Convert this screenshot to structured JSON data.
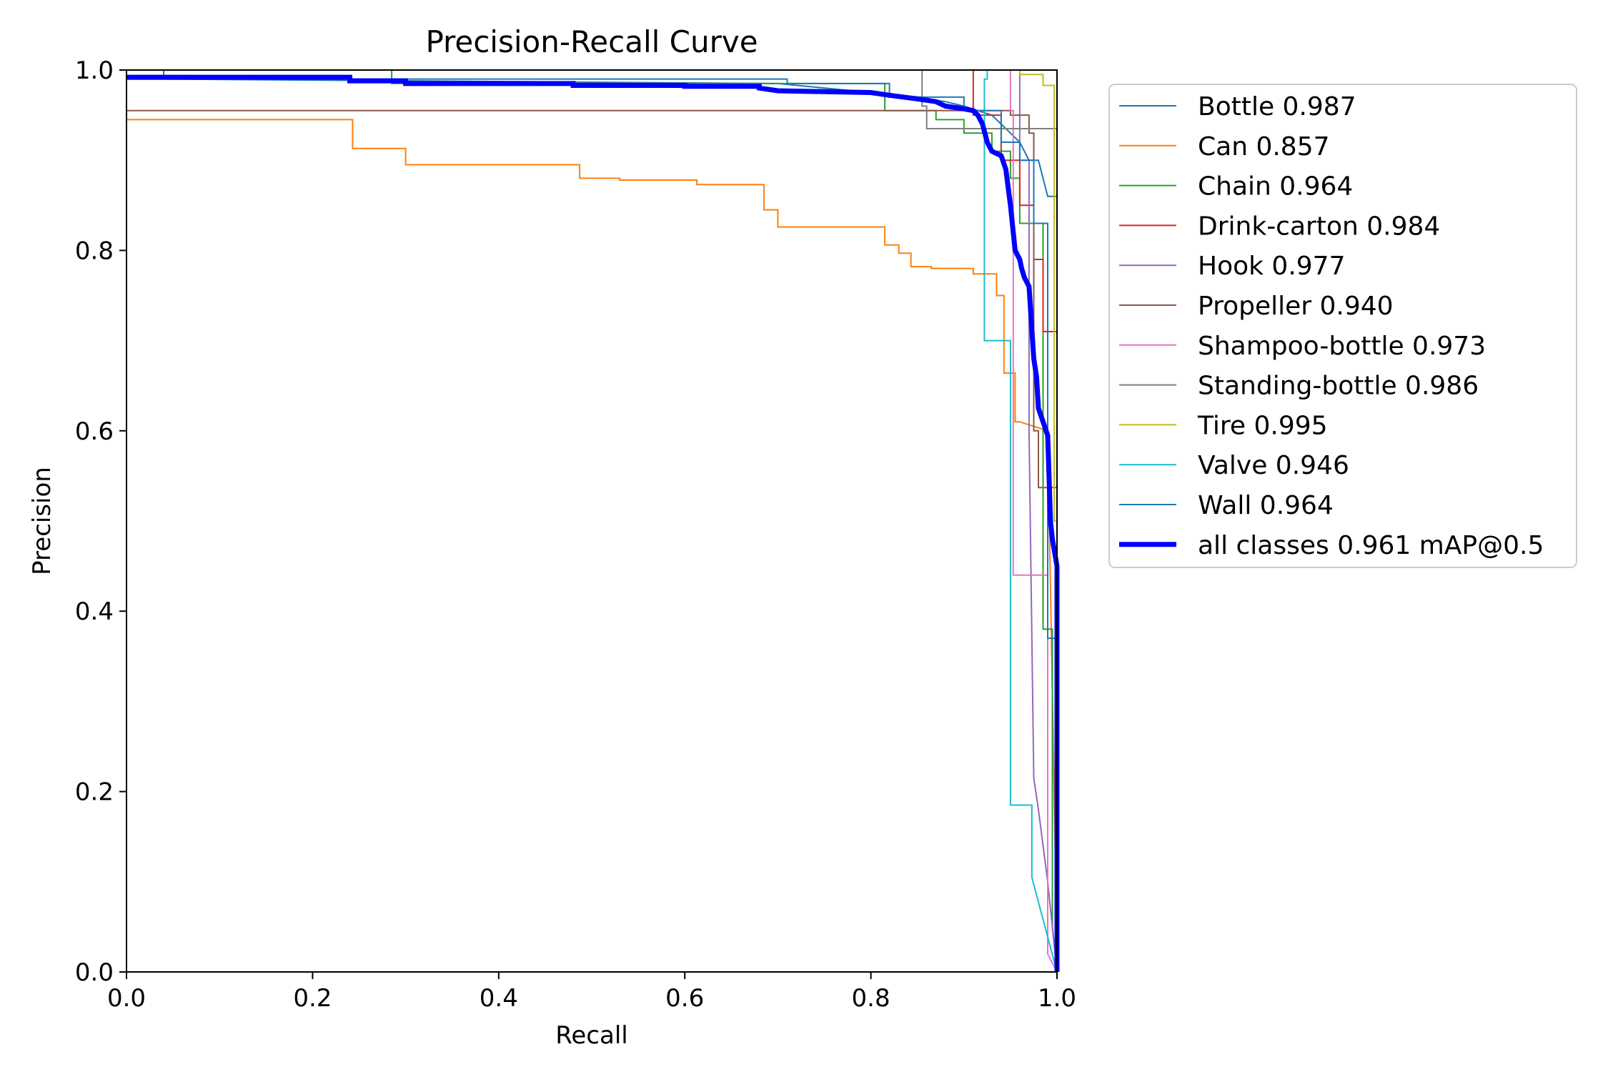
{
  "chart_data": {
    "type": "line",
    "title": "Precision-Recall Curve",
    "xlabel": "Recall",
    "ylabel": "Precision",
    "xlim": [
      0,
      1
    ],
    "ylim": [
      0,
      1
    ],
    "xticks": [
      "0.0",
      "0.2",
      "0.4",
      "0.6",
      "0.8",
      "1.0"
    ],
    "yticks": [
      "0.0",
      "0.2",
      "0.4",
      "0.6",
      "0.8",
      "1.0"
    ],
    "grid": false,
    "legend_position": "outside-right",
    "series": [
      {
        "name": "Bottle 0.987",
        "color": "#1f77b4",
        "width": 2,
        "x": [
          0,
          0.03,
          0.04,
          0.04,
          0.7,
          0.8,
          0.85,
          0.88,
          0.9,
          0.93,
          0.95,
          0.96,
          0.97,
          0.98,
          0.99,
          1.0,
          1.0
        ],
        "y": [
          1.0,
          1.0,
          1.0,
          0.99,
          0.985,
          0.975,
          0.97,
          0.965,
          0.96,
          0.95,
          0.93,
          0.92,
          0.9,
          0.9,
          0.86,
          0.86,
          0.0
        ]
      },
      {
        "name": "Can 0.857",
        "color": "#ff7f0e",
        "width": 2,
        "x": [
          0,
          0.243,
          0.243,
          0.3,
          0.3,
          0.487,
          0.487,
          0.53,
          0.53,
          0.613,
          0.613,
          0.685,
          0.685,
          0.7,
          0.7,
          0.815,
          0.815,
          0.83,
          0.83,
          0.843,
          0.843,
          0.865,
          0.865,
          0.91,
          0.91,
          0.935,
          0.935,
          0.943,
          0.943,
          0.955,
          0.955,
          0.96,
          0.96,
          0.99,
          1.0
        ],
        "y": [
          0.945,
          0.945,
          0.913,
          0.913,
          0.895,
          0.895,
          0.88,
          0.88,
          0.878,
          0.878,
          0.873,
          0.873,
          0.845,
          0.845,
          0.826,
          0.826,
          0.806,
          0.806,
          0.797,
          0.797,
          0.782,
          0.782,
          0.78,
          0.78,
          0.774,
          0.774,
          0.75,
          0.75,
          0.664,
          0.664,
          0.61,
          0.61,
          0.61,
          0.6,
          0.02
        ]
      },
      {
        "name": "Chain 0.964",
        "color": "#2ca02c",
        "width": 2,
        "x": [
          0,
          0.285,
          0.285,
          0.815,
          0.815,
          0.87,
          0.87,
          0.9,
          0.9,
          0.93,
          0.93,
          0.95,
          0.95,
          0.96,
          0.96,
          0.985,
          0.985,
          0.995,
          0.995,
          1.0
        ],
        "y": [
          1.0,
          1.0,
          0.985,
          0.985,
          0.955,
          0.955,
          0.945,
          0.945,
          0.93,
          0.93,
          0.91,
          0.91,
          0.88,
          0.88,
          0.83,
          0.83,
          0.38,
          0.38,
          0.05,
          0.0
        ]
      },
      {
        "name": "Drink-carton 0.984",
        "color": "#d62728",
        "width": 2,
        "x": [
          0.91,
          0.91,
          0.94,
          0.94,
          0.96,
          0.96,
          0.975,
          0.975,
          0.985,
          0.985,
          1.0,
          1.0
        ],
        "y": [
          1.0,
          0.95,
          0.95,
          0.9,
          0.9,
          0.85,
          0.85,
          0.79,
          0.79,
          0.71,
          0.71,
          0.0
        ]
      },
      {
        "name": "Hook 0.977",
        "color": "#9467bd",
        "width": 2,
        "x": [
          0.96,
          0.96,
          0.97,
          0.97,
          0.975,
          0.98,
          0.99,
          1.0
        ],
        "y": [
          1.0,
          0.9,
          0.9,
          0.6,
          0.215,
          0.18,
          0.1,
          0.0
        ]
      },
      {
        "name": "Propeller 0.940",
        "color": "#8c564b",
        "width": 2,
        "x": [
          0,
          0.95,
          0.95,
          0.97,
          0.97,
          0.975,
          0.975,
          0.98,
          0.98,
          1.0,
          1.0
        ],
        "y": [
          0.955,
          0.955,
          0.95,
          0.95,
          0.93,
          0.93,
          0.6,
          0.6,
          0.537,
          0.537,
          0.0
        ]
      },
      {
        "name": "Shampoo-bottle 0.973",
        "color": "#e377c2",
        "width": 2,
        "x": [
          0.95,
          0.95,
          0.953,
          0.953,
          0.99,
          0.99,
          1.0
        ],
        "y": [
          1.0,
          0.955,
          0.955,
          0.44,
          0.44,
          0.02,
          0.0
        ]
      },
      {
        "name": "Standing-bottle 0.986",
        "color": "#7f7f7f",
        "width": 2,
        "x": [
          0.855,
          0.855,
          0.86,
          0.86,
          0.975,
          0.975,
          1.0,
          1.0
        ],
        "y": [
          1.0,
          0.96,
          0.96,
          0.935,
          0.935,
          0.935,
          0.935,
          0.0
        ]
      },
      {
        "name": "Tire 0.995",
        "color": "#bcbd22",
        "width": 2,
        "x": [
          0.96,
          0.96,
          0.985,
          0.985,
          0.997,
          0.997,
          1.0,
          1.0
        ],
        "y": [
          1.0,
          0.995,
          0.995,
          0.983,
          0.983,
          0.5,
          0.5,
          0.0
        ]
      },
      {
        "name": "Valve 0.946",
        "color": "#17becf",
        "width": 2,
        "x": [
          0,
          0.925,
          0.925,
          0.922,
          0.922,
          0.925,
          0.925,
          0.95,
          0.95,
          0.973,
          0.973,
          1.0,
          1.0
        ],
        "y": [
          1.0,
          1.0,
          0.99,
          0.99,
          0.7,
          0.7,
          0.7,
          0.7,
          0.185,
          0.185,
          0.105,
          0.0,
          0.0
        ]
      },
      {
        "name": "Wall 0.964",
        "color": "#1f77b4",
        "width": 2,
        "x": [
          0,
          0.71,
          0.71,
          0.82,
          0.82,
          0.9,
          0.9,
          0.94,
          0.94,
          0.96,
          0.96,
          0.975,
          0.975,
          0.99,
          0.99,
          1.0,
          1.0
        ],
        "y": [
          0.99,
          0.99,
          0.985,
          0.985,
          0.97,
          0.97,
          0.955,
          0.955,
          0.92,
          0.92,
          0.9,
          0.9,
          0.83,
          0.83,
          0.37,
          0.37,
          0.0
        ]
      },
      {
        "name": "all classes 0.961 mAP@0.5",
        "color": "#0000ff",
        "width": 7,
        "x": [
          0,
          0.24,
          0.24,
          0.3,
          0.3,
          0.48,
          0.48,
          0.6,
          0.6,
          0.68,
          0.68,
          0.7,
          0.8,
          0.82,
          0.85,
          0.87,
          0.88,
          0.9,
          0.91,
          0.915,
          0.92,
          0.925,
          0.93,
          0.94,
          0.945,
          0.95,
          0.953,
          0.955,
          0.96,
          0.962,
          0.965,
          0.97,
          0.975,
          0.978,
          0.98,
          0.985,
          0.99,
          0.993,
          0.995,
          1.0,
          1.0
        ],
        "y": [
          0.992,
          0.992,
          0.988,
          0.988,
          0.985,
          0.985,
          0.983,
          0.983,
          0.982,
          0.982,
          0.98,
          0.977,
          0.975,
          0.972,
          0.968,
          0.965,
          0.96,
          0.957,
          0.955,
          0.95,
          0.94,
          0.92,
          0.91,
          0.905,
          0.89,
          0.85,
          0.82,
          0.8,
          0.79,
          0.78,
          0.77,
          0.76,
          0.68,
          0.66,
          0.625,
          0.61,
          0.595,
          0.5,
          0.48,
          0.45,
          0.0
        ]
      }
    ]
  }
}
